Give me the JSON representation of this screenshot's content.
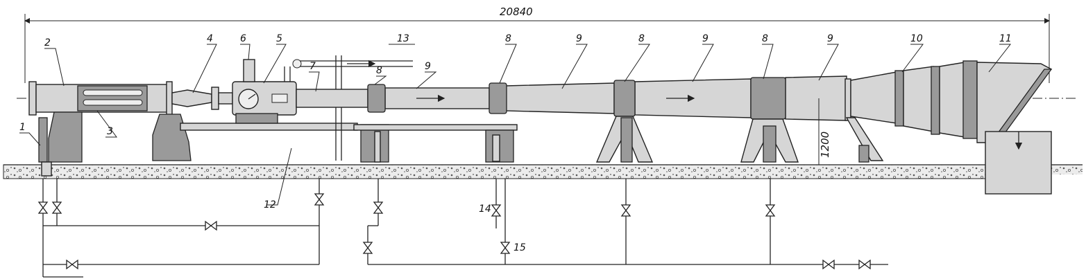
{
  "dimensions": {
    "overall_length": "20840",
    "axis_height": "1200"
  },
  "labels": {
    "l1": "1",
    "l2": "2",
    "l3": "3",
    "l4": "4",
    "l5": "5",
    "l6": "6",
    "l7": "7",
    "l8a": "8",
    "l8b": "8",
    "l8c": "8",
    "l8d": "8",
    "l9a": "9",
    "l9b": "9",
    "l9c": "9",
    "l9d": "9",
    "l10": "10",
    "l11": "11",
    "l12": "12",
    "l13": "13",
    "l14": "14",
    "l15": "15"
  },
  "colors": {
    "ink": "#222222",
    "pipe_fill": "#d6d6d6",
    "support_fill": "#9a9a9a",
    "ground_fill": "#c8c8c8"
  }
}
